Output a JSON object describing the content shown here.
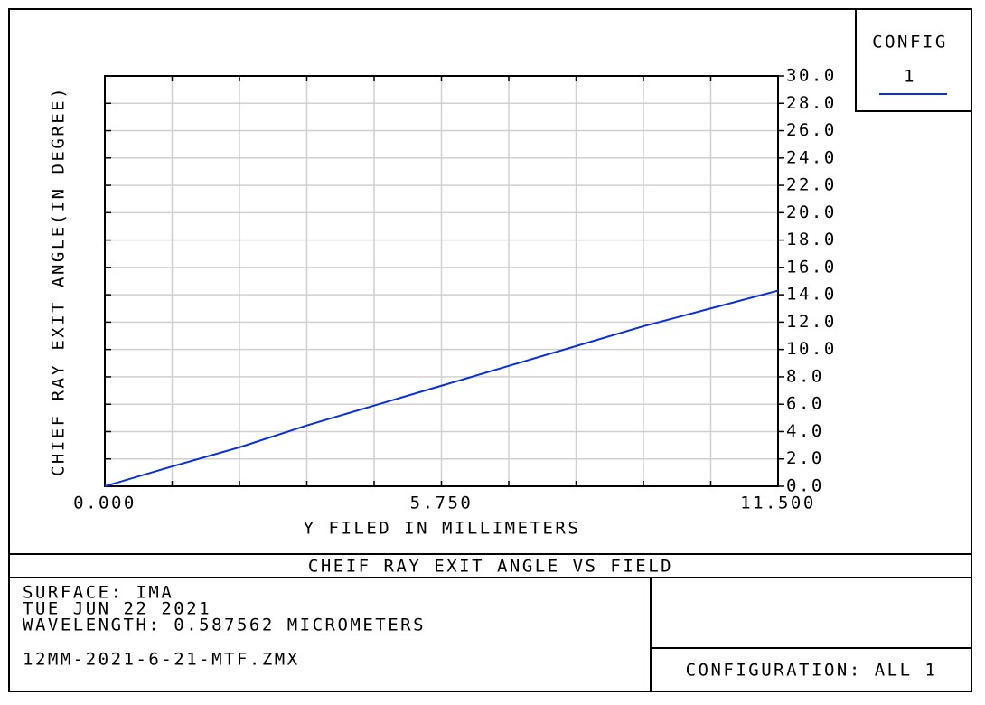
{
  "chart_data": {
    "type": "line",
    "title": "CHEIF RAY EXIT ANGLE VS FIELD",
    "x_label": "Y FILED IN MILLIMETERS",
    "y_label": "CHIEF RAY EXIT ANGLE(IN DEGREE)",
    "legend_title": "CONFIG",
    "x": [
      0,
      1.15,
      2.3,
      3.45,
      4.6,
      5.75,
      6.9,
      8.05,
      9.2,
      10.35,
      11.5
    ],
    "series": [
      {
        "name": "1",
        "color": "#0a2fd6",
        "values": [
          0,
          1.45,
          2.85,
          4.45,
          5.9,
          7.35,
          8.8,
          10.25,
          11.7,
          13.0,
          14.3
        ]
      }
    ],
    "xlim": [
      0,
      11.5
    ],
    "xticks": [
      {
        "value": 0,
        "label": "0.000"
      },
      {
        "value": 5.75,
        "label": "5.750"
      },
      {
        "value": 11.5,
        "label": "11.500"
      }
    ],
    "xminorticks": [
      0,
      1.15,
      2.3,
      3.45,
      4.6,
      5.75,
      6.9,
      8.05,
      9.2,
      10.35,
      11.5
    ],
    "ylim": [
      0,
      30
    ],
    "yticks": [
      {
        "value": 0,
        "label": "0.0"
      },
      {
        "value": 2,
        "label": "2.0"
      },
      {
        "value": 4,
        "label": "4.0"
      },
      {
        "value": 6,
        "label": "6.0"
      },
      {
        "value": 8,
        "label": "8.0"
      },
      {
        "value": 10,
        "label": "10.0"
      },
      {
        "value": 12,
        "label": "12.0"
      },
      {
        "value": 14,
        "label": "14.0"
      },
      {
        "value": 16,
        "label": "16.0"
      },
      {
        "value": 18,
        "label": "18.0"
      },
      {
        "value": 20,
        "label": "20.0"
      },
      {
        "value": 22,
        "label": "22.0"
      },
      {
        "value": 24,
        "label": "24.0"
      },
      {
        "value": 26,
        "label": "26.0"
      },
      {
        "value": 28,
        "label": "28.0"
      },
      {
        "value": 30,
        "label": "30.0"
      }
    ],
    "grid": true,
    "legend_position": "top-right"
  },
  "footer": {
    "lines": [
      "SURFACE: IMA",
      "TUE JUN 22 2021",
      "WAVELENGTH: 0.587562 MICROMETERS"
    ],
    "file": "12MM-2021-6-21-MTF.ZMX",
    "configuration": "CONFIGURATION: ALL 1"
  }
}
